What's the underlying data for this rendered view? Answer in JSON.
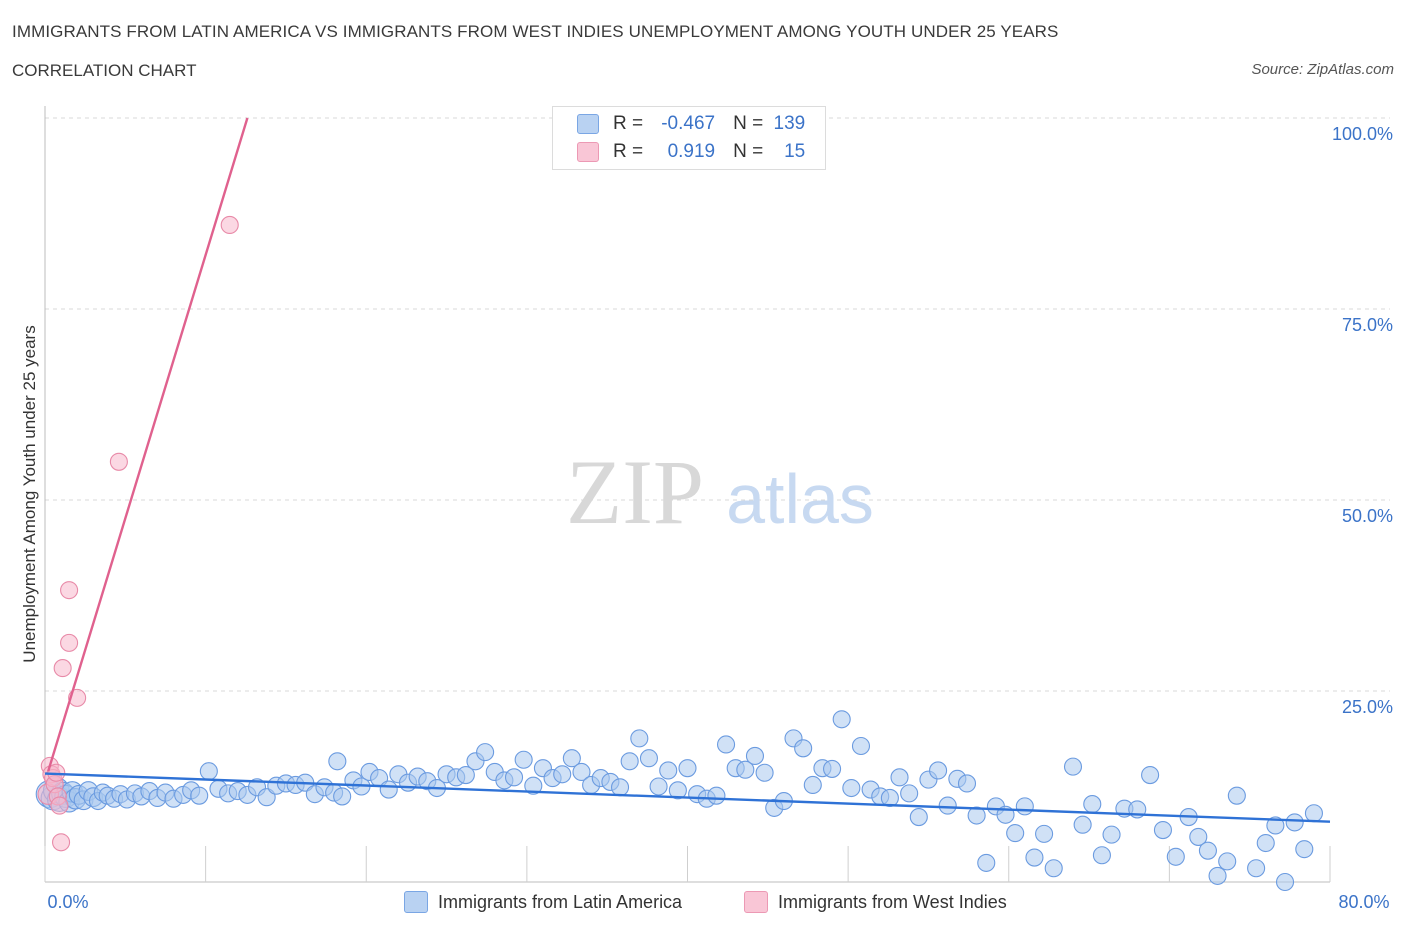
{
  "header": {
    "title": "IMMIGRANTS FROM LATIN AMERICA VS IMMIGRANTS FROM WEST INDIES UNEMPLOYMENT AMONG YOUTH UNDER 25 YEARS",
    "subtitle": "CORRELATION CHART",
    "source": "Source: ZipAtlas.com"
  },
  "legend_top": {
    "rows": [
      {
        "r_label": "R =",
        "r_value": "-0.467",
        "n_label": "N =",
        "n_value": "139"
      },
      {
        "r_label": "R =",
        "r_value": "0.919",
        "n_label": "N =",
        "n_value": "15"
      }
    ]
  },
  "legend_bottom": {
    "series1": "Immigrants from Latin America",
    "series2": "Immigrants from West Indies"
  },
  "watermark": {
    "part1": "ZIP",
    "part2": "atlas"
  },
  "colors": {
    "blue_fill": "#a9c8ef",
    "blue_stroke": "#6b9be0",
    "blue_line": "#2f72d6",
    "pink_fill": "#f7b8cc",
    "pink_stroke": "#e88aa8",
    "pink_line": "#e0618e",
    "tick_text": "#3b73c8",
    "grid": "#d9d9d9"
  },
  "chart_data": {
    "type": "scatter",
    "title": "IMMIGRANTS FROM LATIN AMERICA VS IMMIGRANTS FROM WEST INDIES UNEMPLOYMENT AMONG YOUTH UNDER 25 YEARS",
    "xlabel": "",
    "ylabel": "Unemployment Among Youth under 25 years",
    "xlim": [
      0,
      80
    ],
    "ylim": [
      0,
      100
    ],
    "x_tick_labels": [
      {
        "value": 0,
        "label": "0.0%"
      },
      {
        "value": 80,
        "label": "80.0%"
      }
    ],
    "y_tick_labels": [
      {
        "value": 25,
        "label": "25.0%"
      },
      {
        "value": 50,
        "label": "50.0%"
      },
      {
        "value": 75,
        "label": "75.0%"
      },
      {
        "value": 100,
        "label": "100.0%"
      }
    ],
    "legend_position": "bottom",
    "series": [
      {
        "name": "Immigrants from Latin America",
        "color": "#6b9be0",
        "trendline": {
          "x": [
            0,
            80
          ],
          "y": [
            14.2,
            7.9
          ]
        },
        "points": [
          [
            0.3,
            11.5,
            1.6
          ],
          [
            0.5,
            11.0,
            1.4
          ],
          [
            0.7,
            12.0,
            1.5
          ],
          [
            0.9,
            10.8,
            1.4
          ],
          [
            1.1,
            11.6,
            1.3
          ],
          [
            1.3,
            11.2,
            1.3
          ],
          [
            1.5,
            10.5,
            1.2
          ],
          [
            1.7,
            11.8,
            1.2
          ],
          [
            1.9,
            10.9,
            1.2
          ],
          [
            2.1,
            11.4,
            1.1
          ],
          [
            2.4,
            10.7,
            1.1
          ],
          [
            2.7,
            11.9,
            1.1
          ],
          [
            3.0,
            11.1,
            1.1
          ],
          [
            3.3,
            10.6,
            1.0
          ],
          [
            3.6,
            11.7,
            1.0
          ],
          [
            3.9,
            11.3,
            1.0
          ],
          [
            4.3,
            10.9,
            1.0
          ],
          [
            4.7,
            11.5,
            1.0
          ],
          [
            5.1,
            10.8,
            1.0
          ],
          [
            5.6,
            11.6,
            1.0
          ],
          [
            6.0,
            11.2,
            1.0
          ],
          [
            6.5,
            11.9,
            1.0
          ],
          [
            7.0,
            11.0,
            1.0
          ],
          [
            7.5,
            11.7,
            1.0
          ],
          [
            8.0,
            10.9,
            1.0
          ],
          [
            8.6,
            11.4,
            1.0
          ],
          [
            9.1,
            12.0,
            1.0
          ],
          [
            9.6,
            11.3,
            1.0
          ],
          [
            10.2,
            14.5,
            1.0
          ],
          [
            10.8,
            12.2,
            1.0
          ],
          [
            11.4,
            11.6,
            1.0
          ],
          [
            12.0,
            11.9,
            1.0
          ],
          [
            12.6,
            11.4,
            1.0
          ],
          [
            13.2,
            12.4,
            1.0
          ],
          [
            13.8,
            11.1,
            1.0
          ],
          [
            14.4,
            12.6,
            1.0
          ],
          [
            15.0,
            12.9,
            1.0
          ],
          [
            15.6,
            12.7,
            1.0
          ],
          [
            16.2,
            13.0,
            1.0
          ],
          [
            16.8,
            11.5,
            1.0
          ],
          [
            17.4,
            12.4,
            1.0
          ],
          [
            18.0,
            11.7,
            1.0
          ],
          [
            18.5,
            11.2,
            1.0
          ],
          [
            18.2,
            15.8,
            1.0
          ],
          [
            19.2,
            13.3,
            1.0
          ],
          [
            19.7,
            12.5,
            1.0
          ],
          [
            20.2,
            14.4,
            1.0
          ],
          [
            20.8,
            13.6,
            1.0
          ],
          [
            21.4,
            12.1,
            1.0
          ],
          [
            22.0,
            14.1,
            1.0
          ],
          [
            22.6,
            13.0,
            1.0
          ],
          [
            23.2,
            13.8,
            1.0
          ],
          [
            23.8,
            13.2,
            1.0
          ],
          [
            24.4,
            12.3,
            1.0
          ],
          [
            25.0,
            14.1,
            1.0
          ],
          [
            25.6,
            13.7,
            1.0
          ],
          [
            26.2,
            14.0,
            1.0
          ],
          [
            26.8,
            15.8,
            1.0
          ],
          [
            27.4,
            17.0,
            1.0
          ],
          [
            28.0,
            14.4,
            1.0
          ],
          [
            28.6,
            13.3,
            1.0
          ],
          [
            29.2,
            13.7,
            1.0
          ],
          [
            29.8,
            16.0,
            1.0
          ],
          [
            30.4,
            12.6,
            1.0
          ],
          [
            31.0,
            14.9,
            1.0
          ],
          [
            31.6,
            13.6,
            1.0
          ],
          [
            32.2,
            14.1,
            1.0
          ],
          [
            32.8,
            16.2,
            1.0
          ],
          [
            33.4,
            14.4,
            1.0
          ],
          [
            34.0,
            12.7,
            1.0
          ],
          [
            34.6,
            13.6,
            1.0
          ],
          [
            35.2,
            13.1,
            1.0
          ],
          [
            35.8,
            12.4,
            1.0
          ],
          [
            36.4,
            15.8,
            1.0
          ],
          [
            37.0,
            18.8,
            1.0
          ],
          [
            37.6,
            16.2,
            1.0
          ],
          [
            38.2,
            12.5,
            1.0
          ],
          [
            38.8,
            14.6,
            1.0
          ],
          [
            39.4,
            12.0,
            1.0
          ],
          [
            40.0,
            14.9,
            1.0
          ],
          [
            40.6,
            11.5,
            1.0
          ],
          [
            41.2,
            10.9,
            1.0
          ],
          [
            41.8,
            11.3,
            1.0
          ],
          [
            42.4,
            18.0,
            1.0
          ],
          [
            43.0,
            14.9,
            1.0
          ],
          [
            43.6,
            14.7,
            1.0
          ],
          [
            44.2,
            16.5,
            1.0
          ],
          [
            44.8,
            14.3,
            1.0
          ],
          [
            45.4,
            9.7,
            1.0
          ],
          [
            46.0,
            10.6,
            1.0
          ],
          [
            46.6,
            18.8,
            1.0
          ],
          [
            47.2,
            17.5,
            1.0
          ],
          [
            47.8,
            12.7,
            1.0
          ],
          [
            48.4,
            14.9,
            1.0
          ],
          [
            49.0,
            14.8,
            1.0
          ],
          [
            49.6,
            21.3,
            1.0
          ],
          [
            50.2,
            12.3,
            1.0
          ],
          [
            50.8,
            17.8,
            1.0
          ],
          [
            51.4,
            12.1,
            1.0
          ],
          [
            52.0,
            11.2,
            1.0
          ],
          [
            52.6,
            11.0,
            1.0
          ],
          [
            53.2,
            13.7,
            1.0
          ],
          [
            53.8,
            11.6,
            1.0
          ],
          [
            54.4,
            8.5,
            1.0
          ],
          [
            55.0,
            13.4,
            1.0
          ],
          [
            55.6,
            14.6,
            1.0
          ],
          [
            56.2,
            10.0,
            1.0
          ],
          [
            56.8,
            13.5,
            1.0
          ],
          [
            57.4,
            12.9,
            1.0
          ],
          [
            58.0,
            8.7,
            1.0
          ],
          [
            58.6,
            2.5,
            1.0
          ],
          [
            59.2,
            9.9,
            1.0
          ],
          [
            59.8,
            8.8,
            1.0
          ],
          [
            60.4,
            6.4,
            1.0
          ],
          [
            61.0,
            9.9,
            1.0
          ],
          [
            61.6,
            3.2,
            1.0
          ],
          [
            62.2,
            6.3,
            1.0
          ],
          [
            62.8,
            1.8,
            1.0
          ],
          [
            64.0,
            15.1,
            1.0
          ],
          [
            64.6,
            7.5,
            1.0
          ],
          [
            65.2,
            10.2,
            1.0
          ],
          [
            65.8,
            3.5,
            1.0
          ],
          [
            66.4,
            6.2,
            1.0
          ],
          [
            67.2,
            9.6,
            1.0
          ],
          [
            68.0,
            9.5,
            1.0
          ],
          [
            68.8,
            14.0,
            1.0
          ],
          [
            69.6,
            6.8,
            1.0
          ],
          [
            70.4,
            3.3,
            1.0
          ],
          [
            71.2,
            8.5,
            1.0
          ],
          [
            71.8,
            5.9,
            1.0
          ],
          [
            72.4,
            4.1,
            1.0
          ],
          [
            73.0,
            0.8,
            1.0
          ],
          [
            73.6,
            2.7,
            1.0
          ],
          [
            74.2,
            11.3,
            1.0
          ],
          [
            75.4,
            1.8,
            1.0
          ],
          [
            76.0,
            5.1,
            1.0
          ],
          [
            76.6,
            7.4,
            1.0
          ],
          [
            77.2,
            0.0,
            1.0
          ],
          [
            77.8,
            7.8,
            1.0
          ],
          [
            78.4,
            4.3,
            1.0
          ],
          [
            79.0,
            9.0,
            1.0
          ]
        ]
      },
      {
        "name": "Immigrants from West Indies",
        "color": "#e88aa8",
        "trendline": {
          "x": [
            0.2,
            12.6
          ],
          "y": [
            14.5,
            100.0
          ]
        },
        "points": [
          [
            0.2,
            11.5,
            1.2
          ],
          [
            0.3,
            15.2,
            1.0
          ],
          [
            0.4,
            14.1,
            1.0
          ],
          [
            0.5,
            13.6,
            1.0
          ],
          [
            0.6,
            12.8,
            1.0
          ],
          [
            0.7,
            14.3,
            1.0
          ],
          [
            0.8,
            11.2,
            1.0
          ],
          [
            0.9,
            10.0,
            1.0
          ],
          [
            1.0,
            5.2,
            1.0
          ],
          [
            1.1,
            28.0,
            1.0
          ],
          [
            1.5,
            31.3,
            1.0
          ],
          [
            1.5,
            38.2,
            1.0
          ],
          [
            2.0,
            24.1,
            1.0
          ],
          [
            4.6,
            55.0,
            1.0
          ],
          [
            11.5,
            86.0,
            1.0
          ]
        ]
      }
    ]
  }
}
